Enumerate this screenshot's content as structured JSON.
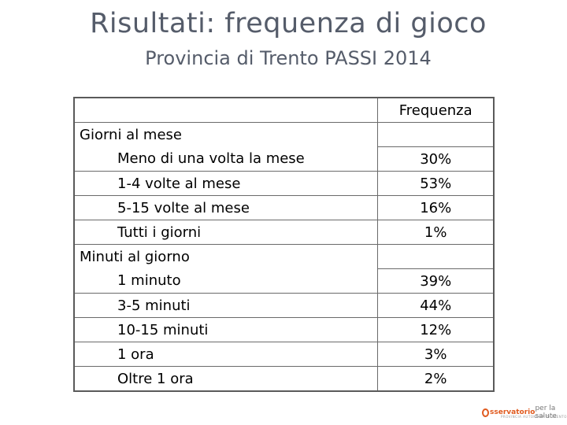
{
  "title": "Risultati: frequenza di gioco",
  "subtitle": "Provincia di Trento PASSI 2014",
  "table": {
    "header": "Frequenza",
    "groups": [
      {
        "label": "Giorni al mese",
        "rows": [
          {
            "label": "Meno di una volta la mese",
            "value": "30%"
          },
          {
            "label": "1-4 volte al mese",
            "value": "53%"
          },
          {
            "label": "5-15 volte al mese",
            "value": "16%"
          },
          {
            "label": "Tutti i giorni",
            "value": "1%"
          }
        ]
      },
      {
        "label": "Minuti al giorno",
        "rows": [
          {
            "label": "1 minuto",
            "value": "39%"
          },
          {
            "label": "3-5 minuti",
            "value": "44%"
          },
          {
            "label": "10-15 minuti",
            "value": "12%"
          },
          {
            "label": "1 ora",
            "value": "3%"
          },
          {
            "label": "Oltre 1 ora",
            "value": "2%"
          }
        ]
      }
    ]
  },
  "logo": {
    "brand": "sservatorio",
    "tail": "per la salute",
    "sub": "PROVINCIA AUTONOMA DI TRENTO"
  }
}
